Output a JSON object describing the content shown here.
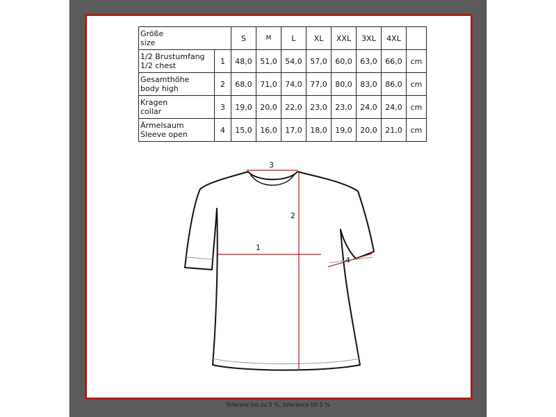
{
  "header": {
    "label_de": "Größe",
    "label_en": "size",
    "sizes": [
      "S",
      "M",
      "L",
      "XL",
      "XXL",
      "3XL",
      "4XL"
    ]
  },
  "rows": [
    {
      "de": "1/2 Brustumfang",
      "en": "1/2 chest",
      "n": "1",
      "values": [
        "48,0",
        "51,0",
        "54,0",
        "57,0",
        "60,0",
        "63,0",
        "66,0"
      ],
      "unit": "cm"
    },
    {
      "de": "Gesamthöhe",
      "en": "body high",
      "n": "2",
      "values": [
        "68,0",
        "71,0",
        "74,0",
        "77,0",
        "80,0",
        "83,0",
        "86,0"
      ],
      "unit": "cm"
    },
    {
      "de": "Kragen",
      "en": "collar",
      "n": "3",
      "values": [
        "19,0",
        "20,0",
        "22,0",
        "23,0",
        "23,0",
        "24,0",
        "24,0"
      ],
      "unit": "cm"
    },
    {
      "de": "Ärmelsaum",
      "en": "Sleeve open",
      "n": "4",
      "values": [
        "15,0",
        "16,0",
        "17,0",
        "18,0",
        "19,0",
        "20,0",
        "21,0"
      ],
      "unit": "cm"
    }
  ],
  "diagram": {
    "labels": [
      "1",
      "2",
      "3",
      "4"
    ],
    "line_color": "#a3211b"
  },
  "footer": "Toleranz bis zu 5 %, tolerance till 5 %"
}
